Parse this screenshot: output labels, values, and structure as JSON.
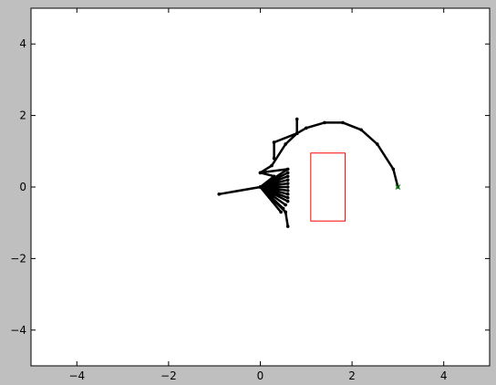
{
  "chart_data": {
    "type": "line",
    "title": "",
    "xlabel": "",
    "ylabel": "",
    "xlim": [
      -5,
      5
    ],
    "ylim": [
      -5,
      5
    ],
    "grid": false,
    "xticks": [
      -4,
      -2,
      0,
      2,
      4
    ],
    "yticks": [
      -4,
      -2,
      0,
      2,
      4
    ],
    "xtick_labels": [
      "−4",
      "−2",
      "0",
      "2",
      "4"
    ],
    "ytick_labels": [
      "−4",
      "−2",
      "0",
      "2",
      "4"
    ],
    "colors": {
      "figure_background": "#bfbfbf",
      "axes_background": "#ffffff",
      "path": "#000000",
      "rectangle": "#ff0000",
      "start_marker": "#008000"
    },
    "series": [
      {
        "style": "path",
        "points": [
          [
            3.0,
            0.0
          ],
          [
            2.9,
            0.5
          ],
          [
            2.55,
            1.2
          ],
          [
            2.2,
            1.6
          ],
          [
            1.8,
            1.8
          ],
          [
            1.4,
            1.8
          ],
          [
            1.0,
            1.65
          ],
          [
            0.8,
            1.5
          ],
          [
            0.8,
            1.9
          ],
          [
            0.8,
            1.5
          ],
          [
            0.3,
            1.25
          ],
          [
            0.3,
            0.8
          ],
          [
            0.3,
            1.25
          ],
          [
            0.8,
            1.5
          ],
          [
            0.55,
            1.2
          ],
          [
            0.25,
            0.6
          ],
          [
            0.0,
            0.4
          ],
          [
            0.6,
            0.5
          ],
          [
            0.0,
            0.0
          ],
          [
            0.6,
            0.4
          ],
          [
            0.0,
            0.0
          ],
          [
            0.6,
            0.3
          ],
          [
            0.0,
            0.0
          ],
          [
            0.6,
            0.2
          ],
          [
            0.0,
            0.0
          ],
          [
            0.6,
            0.1
          ],
          [
            0.0,
            0.0
          ],
          [
            0.6,
            0.0
          ],
          [
            0.0,
            0.0
          ],
          [
            0.6,
            -0.1
          ],
          [
            0.0,
            0.0
          ],
          [
            0.6,
            -0.2
          ],
          [
            0.0,
            0.0
          ],
          [
            0.6,
            -0.3
          ],
          [
            0.0,
            0.0
          ],
          [
            0.6,
            -0.4
          ],
          [
            0.0,
            0.0
          ],
          [
            0.55,
            -0.5
          ],
          [
            0.0,
            0.0
          ],
          [
            0.5,
            -0.6
          ],
          [
            0.0,
            0.0
          ],
          [
            0.45,
            -0.7
          ],
          [
            0.0,
            0.0
          ],
          [
            0.55,
            -0.7
          ],
          [
            0.6,
            -1.1
          ],
          [
            0.55,
            -0.7
          ],
          [
            0.0,
            0.0
          ],
          [
            -0.9,
            -0.2
          ],
          [
            0.0,
            0.0
          ],
          [
            0.3,
            0.3
          ],
          [
            0.0,
            0.4
          ]
        ]
      }
    ],
    "markers": [
      {
        "x": 3.0,
        "y": 0.0,
        "symbol": "x"
      }
    ],
    "rectangles": [
      {
        "x0": 1.1,
        "x1": 1.85,
        "y0": -0.95,
        "y1": 0.95
      }
    ]
  }
}
